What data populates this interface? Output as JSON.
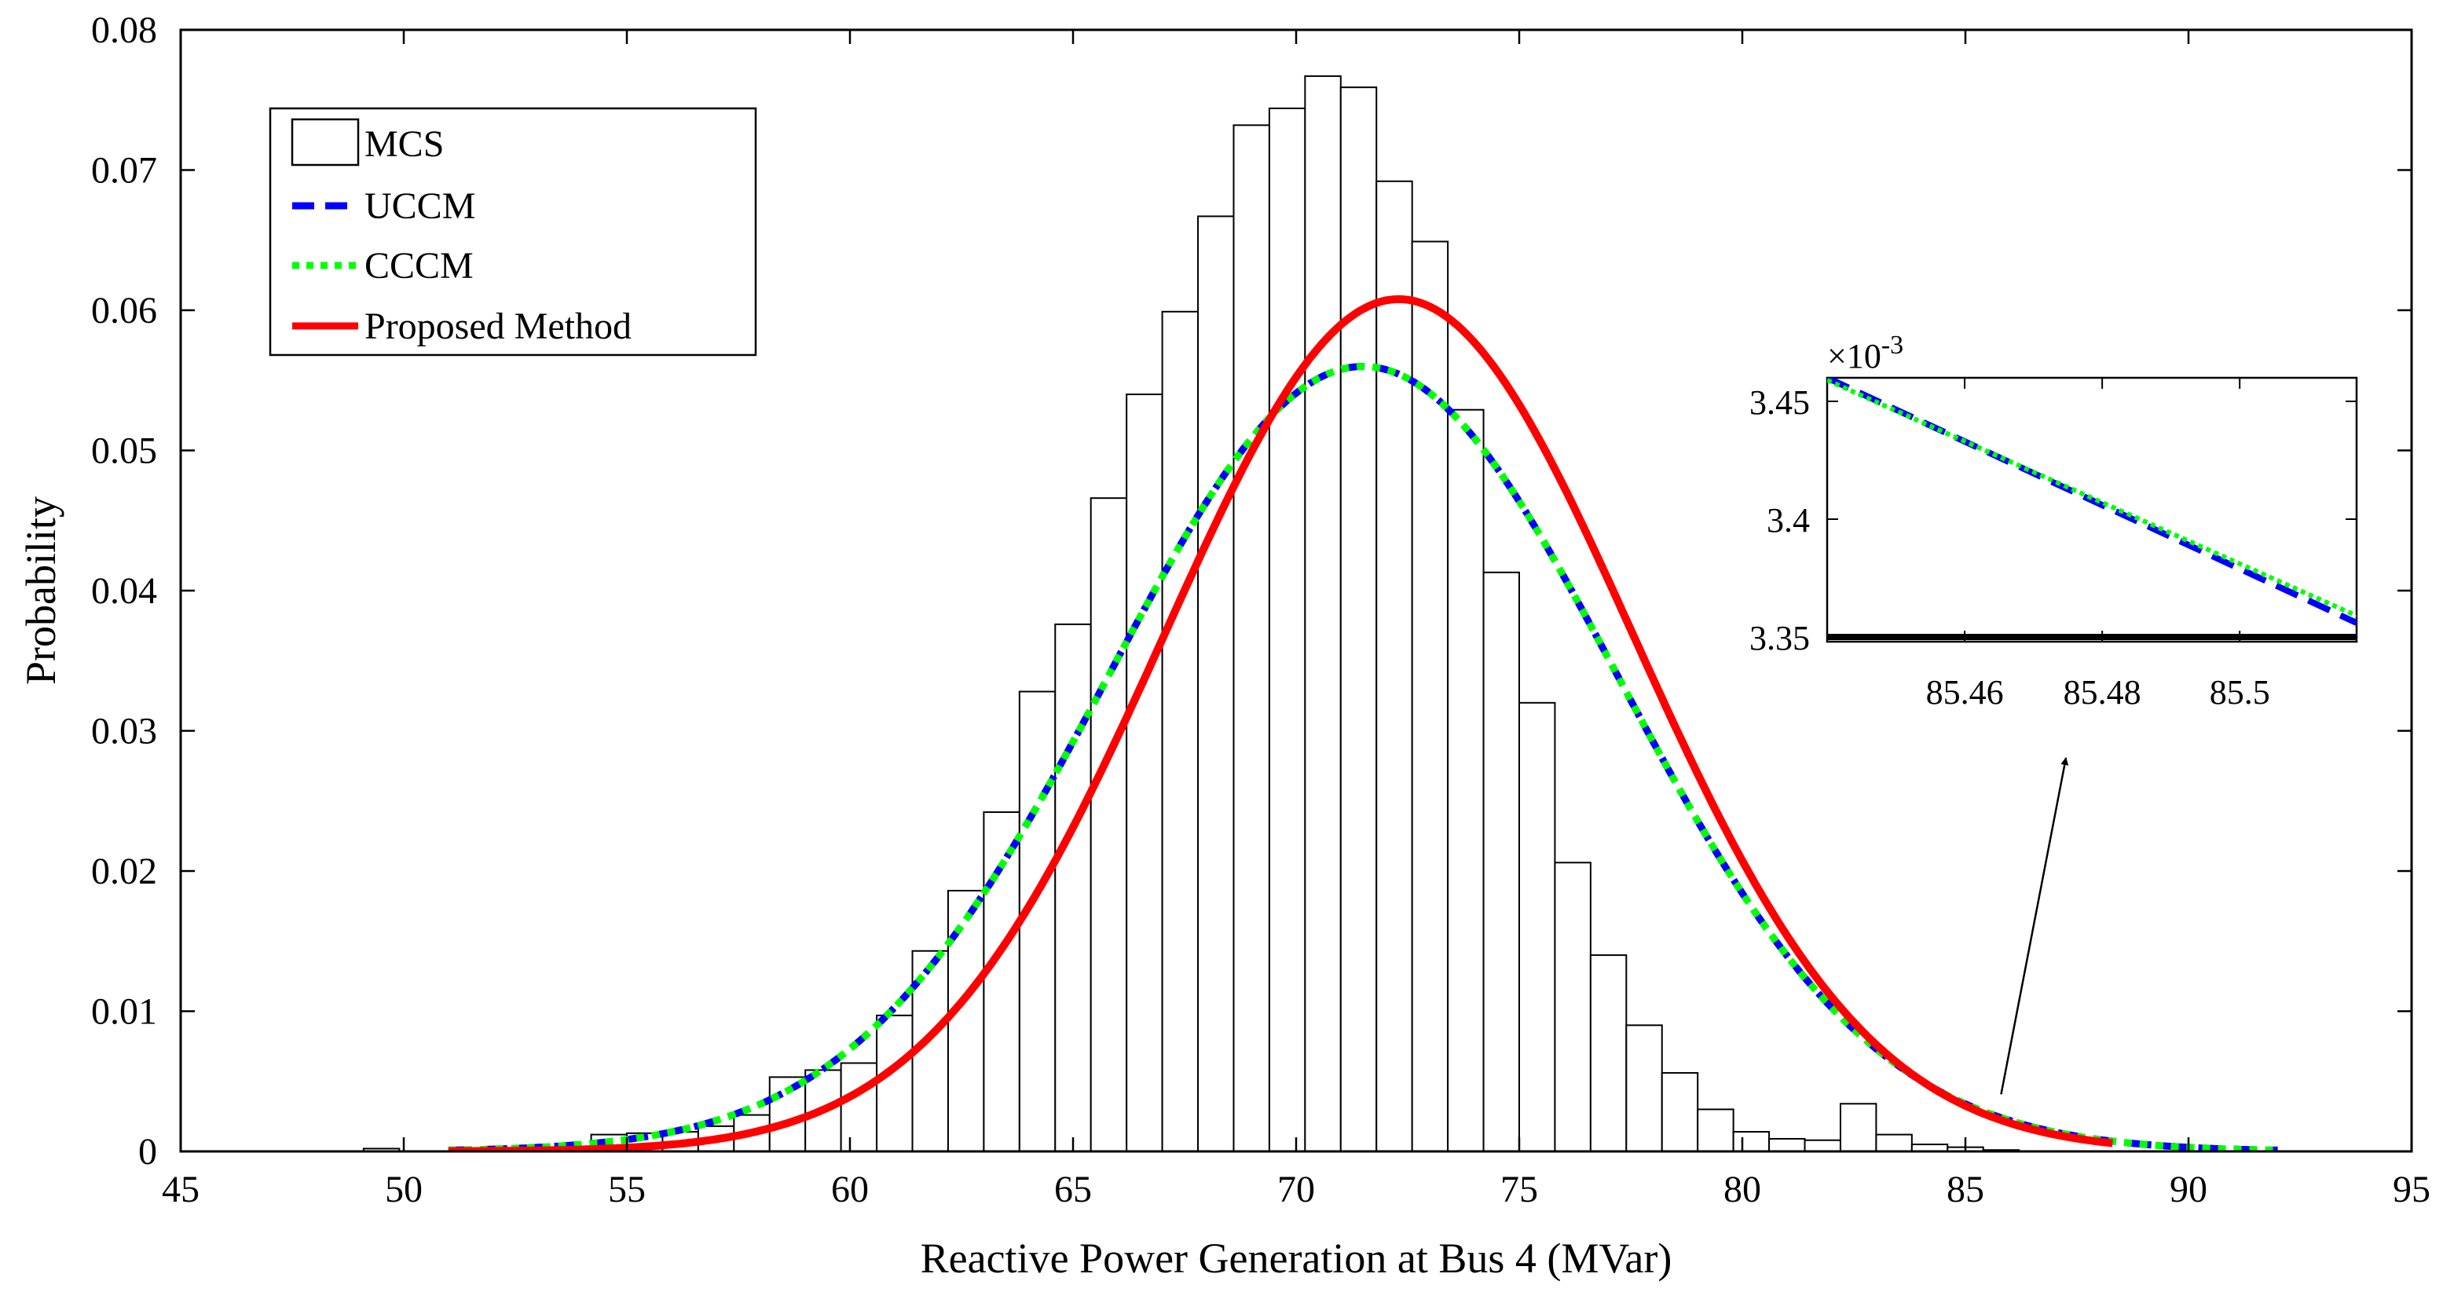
{
  "chart_data": {
    "type": "bar+line",
    "xlabel": "Reactive Power Generation at Bus 4 (MVar)",
    "ylabel": "Probability",
    "xlim": [
      45,
      95
    ],
    "ylim": [
      0,
      0.08
    ],
    "xticks": [
      "45",
      "50",
      "55",
      "60",
      "65",
      "70",
      "75",
      "80",
      "85",
      "90",
      "95"
    ],
    "yticks": [
      "0",
      "0.01",
      "0.02",
      "0.03",
      "0.04",
      "0.05",
      "0.06",
      "0.07",
      "0.08"
    ],
    "histogram": {
      "name": "MCS",
      "bin_width": 0.8,
      "centers": [
        49.5,
        54.6,
        55.4,
        56.2,
        57.0,
        57.8,
        58.6,
        59.4,
        60.2,
        61.0,
        61.8,
        62.6,
        63.4,
        64.2,
        65.0,
        65.8,
        66.6,
        67.4,
        68.2,
        69.0,
        69.8,
        70.6,
        71.4,
        72.2,
        73.0,
        73.8,
        74.6,
        75.4,
        76.2,
        77.0,
        77.8,
        78.6,
        79.4,
        80.2,
        81.0,
        81.8,
        82.6,
        83.4,
        84.2,
        85.0,
        85.8
      ],
      "values": [
        0.0002,
        0.0012,
        0.0013,
        0.0014,
        0.0018,
        0.0026,
        0.0053,
        0.0058,
        0.0063,
        0.0097,
        0.0143,
        0.0186,
        0.0242,
        0.0328,
        0.0376,
        0.0466,
        0.054,
        0.0599,
        0.0667,
        0.0732,
        0.0744,
        0.0767,
        0.0759,
        0.0692,
        0.0649,
        0.0529,
        0.0413,
        0.032,
        0.0206,
        0.014,
        0.009,
        0.0056,
        0.003,
        0.0014,
        0.0009,
        0.0008,
        0.0034,
        0.0012,
        0.0005,
        0.0003,
        0.0001
      ]
    },
    "series": [
      {
        "name": "UCCM",
        "style": "dashed",
        "color": "#0000ff",
        "mean": 71.5,
        "sd": 5.7,
        "x_range": [
          51,
          92
        ]
      },
      {
        "name": "CCCM",
        "style": "dotted",
        "color": "#00ff00",
        "mean": 71.5,
        "sd": 5.7,
        "x_range": [
          51,
          92
        ]
      },
      {
        "name": "Proposed Method",
        "style": "solid",
        "color": "#ff0000",
        "mean": 72.3,
        "sd": 5.25,
        "x_range": [
          51,
          88.3
        ]
      }
    ],
    "legend": {
      "position": "top-left",
      "entries": [
        "MCS",
        "UCCM",
        "CCCM",
        "Proposed Method"
      ]
    },
    "inset": {
      "exponent_label": "×10",
      "exponent_value": "-3",
      "xlim": [
        85.44,
        85.517
      ],
      "ylim": [
        3.348,
        3.46
      ],
      "xticks": [
        "85.46",
        "85.48",
        "85.5"
      ],
      "yticks": [
        "3.45",
        "3.4",
        "3.35"
      ],
      "uccm": {
        "x": [
          85.44,
          85.517
        ],
        "y": [
          3.46,
          3.356
        ]
      },
      "cccm": {
        "x": [
          85.44,
          85.517
        ],
        "y": [
          3.459,
          3.359
        ]
      },
      "baseline_y": 3.35,
      "zoom_target": {
        "x": 85.8,
        "y": 0.0034
      }
    }
  }
}
